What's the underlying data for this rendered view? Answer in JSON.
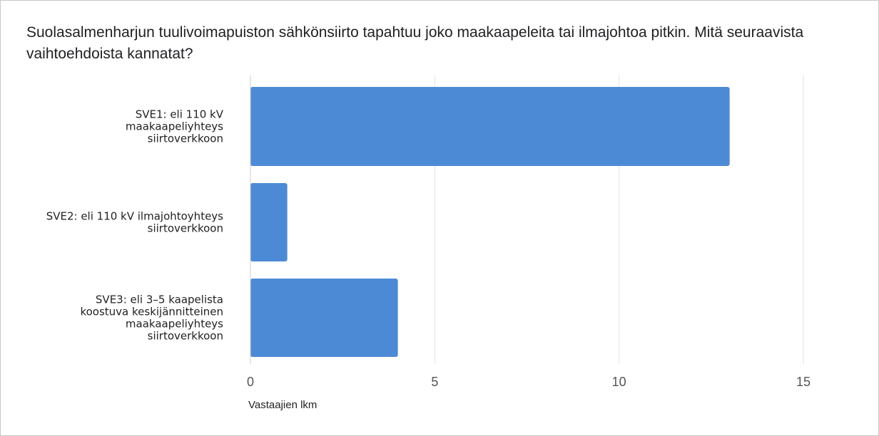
{
  "question": "Suolasalmenharjun tuulivoimapuiston sähkönsiirto tapahtuu joko maakaapeleita tai ilmajohtoa pitkin. Mitä seuraavista vaihtoehdoista kannatat?",
  "chart_data": {
    "type": "bar",
    "orientation": "horizontal",
    "title": "Suolasalmenharjun tuulivoimapuiston sähkönsiirto tapahtuu joko maakaapeleita tai ilmajohtoa pitkin. Mitä seuraavista vaihtoehdoista kannatat?",
    "categories": [
      [
        "SVE1: eli 110 kV",
        "maakaapeliyhteys",
        "siirtoverkkoon"
      ],
      [
        "SVE2: eli 110 kV ilmajohtoyhteys",
        "siirtoverkkoon"
      ],
      [
        "SVE3: eli 3–5 kaapelista",
        "koostuva keskijännitteinen",
        "maakaapeliyhteys",
        "siirtoverkkoon"
      ]
    ],
    "values": [
      13,
      1,
      4
    ],
    "xlabel": "Vastaajien lkm",
    "ylabel": "",
    "xlim": [
      0,
      15
    ],
    "xticks": [
      0,
      5,
      10,
      15
    ],
    "grid": true,
    "bar_color": "#4d8ad6"
  }
}
